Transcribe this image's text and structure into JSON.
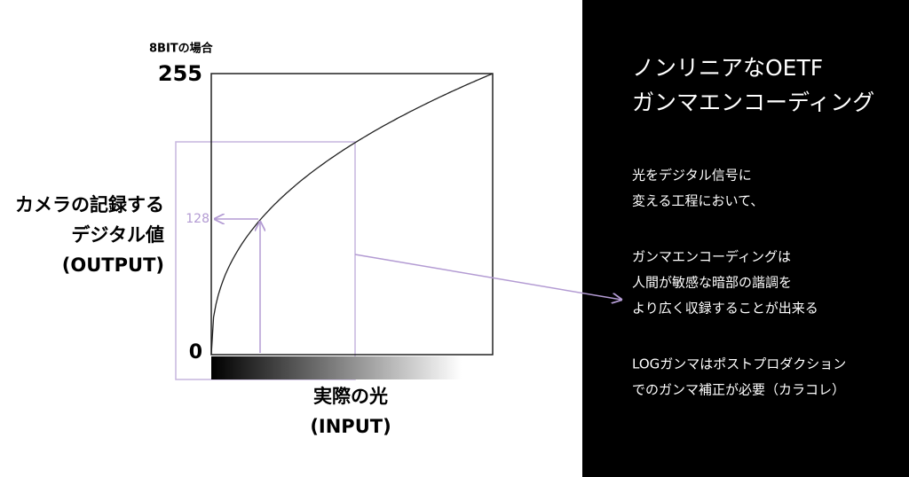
{
  "header": {
    "note": "8BITの場合"
  },
  "axis": {
    "y_top": "255",
    "y_bottom": "0",
    "y_mid": "128",
    "y_title": [
      "カメラの記録する",
      "デジタル値",
      "(OUTPUT)"
    ],
    "x_title": [
      "実際の光",
      "(INPUT)"
    ]
  },
  "panel": {
    "title": [
      "ノンリニアなOETF",
      "ガンマエンコーディング"
    ],
    "paragraphs": [
      [
        "光をデジタル信号に",
        "変える工程において、"
      ],
      [
        "ガンマエンコーディングは",
        "人間が敏感な暗部の諧調を",
        "より広く収録することが出来る"
      ],
      [
        "LOGガンマはポストプロダクション",
        "でのガンマ補正が必要（カラコレ）"
      ]
    ]
  }
}
